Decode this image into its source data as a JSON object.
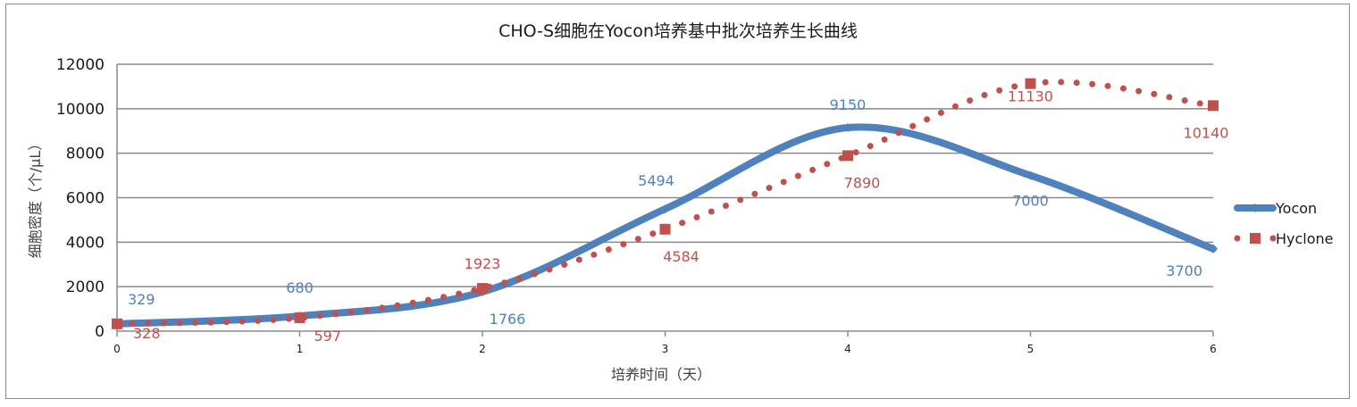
{
  "chart_data": {
    "type": "line",
    "title": "CHO-S细胞在Yocon培养基中批次培养生长曲线",
    "xlabel": "培养时间（天）",
    "ylabel": "细胞密度（个/μL）",
    "x": [
      0,
      1,
      2,
      3,
      4,
      5,
      6
    ],
    "xlim": [
      0,
      6
    ],
    "ylim": [
      0,
      12000
    ],
    "yticks": [
      0,
      2000,
      4000,
      6000,
      8000,
      10000,
      12000
    ],
    "grid": true,
    "legend_position": "right",
    "series": [
      {
        "name": "Yocon",
        "values": [
          329,
          680,
          1766,
          5494,
          9150,
          7000,
          3700
        ],
        "labels": [
          "329",
          "680",
          "1766",
          "5494",
          "9150",
          "7000",
          "3700"
        ],
        "color": "#4f81bd",
        "style": "solid-smooth",
        "marker": "diamond"
      },
      {
        "name": "Hyclone",
        "values": [
          328,
          597,
          1923,
          4584,
          7890,
          11130,
          10140
        ],
        "labels": [
          "328",
          "597",
          "1923",
          "4584",
          "7890",
          "11130",
          "10140"
        ],
        "color": "#c0504d",
        "style": "round-dot-smooth",
        "marker": "square"
      }
    ]
  }
}
